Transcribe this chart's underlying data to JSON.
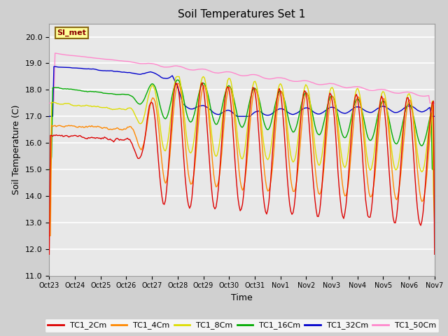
{
  "title": "Soil Temperatures Set 1",
  "xlabel": "Time",
  "ylabel": "Soil Temperature (C)",
  "ylim": [
    11.0,
    20.5
  ],
  "yticks": [
    11.0,
    12.0,
    13.0,
    14.0,
    15.0,
    16.0,
    17.0,
    18.0,
    19.0,
    20.0
  ],
  "annotation_text": "SI_met",
  "annotation_color": "#8B0000",
  "annotation_bg": "#FFFF99",
  "annotation_border": "#8B6914",
  "fig_bg_color": "#D0D0D0",
  "plot_bg": "#E8E8E8",
  "grid_color": "#FFFFFF",
  "series": {
    "TC1_2Cm": {
      "color": "#DD0000",
      "lw": 1.0
    },
    "TC1_4Cm": {
      "color": "#FF8800",
      "lw": 1.0
    },
    "TC1_8Cm": {
      "color": "#DDDD00",
      "lw": 1.0
    },
    "TC1_16Cm": {
      "color": "#00AA00",
      "lw": 1.0
    },
    "TC1_32Cm": {
      "color": "#0000CC",
      "lw": 1.0
    },
    "TC1_50Cm": {
      "color": "#FF88CC",
      "lw": 1.0
    }
  },
  "x_tick_labels": [
    "Oct 23",
    "Oct 24",
    "Oct 25",
    "Oct 26",
    "Oct 27",
    "Oct 28",
    "Oct 29",
    "Oct 30",
    "Oct 31",
    "Nov 1",
    "Nov 2",
    "Nov 3",
    "Nov 4",
    "Nov 5",
    "Nov 6",
    "Nov 7"
  ],
  "num_points": 336,
  "figsize": [
    6.4,
    4.8
  ],
  "dpi": 100
}
